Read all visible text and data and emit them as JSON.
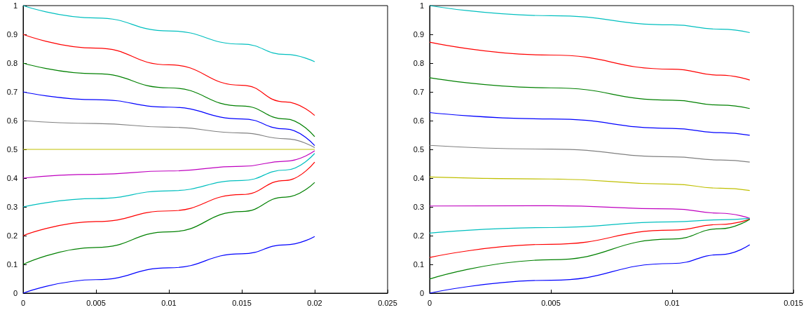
{
  "chart_data": [
    {
      "type": "line",
      "x": [
        0,
        0.005,
        0.01,
        0.015,
        0.018,
        0.02
      ],
      "xlim": [
        0,
        0.025
      ],
      "xticks": [
        0,
        0.005,
        0.01,
        0.015,
        0.02,
        0.025
      ],
      "ylim": [
        0,
        1
      ],
      "yticks": [
        0,
        0.1,
        0.2,
        0.3,
        0.4,
        0.5,
        0.6,
        0.7,
        0.8,
        0.9,
        1
      ],
      "grid": false,
      "series": [
        {
          "color": "#00bfbf",
          "values": [
            1.0,
            0.957,
            0.912,
            0.866,
            0.83,
            0.805
          ]
        },
        {
          "color": "#ff0000",
          "values": [
            0.9,
            0.852,
            0.794,
            0.723,
            0.665,
            0.618
          ]
        },
        {
          "color": "#008000",
          "values": [
            0.8,
            0.763,
            0.714,
            0.651,
            0.606,
            0.544
          ]
        },
        {
          "color": "#0000ff",
          "values": [
            0.7,
            0.673,
            0.647,
            0.606,
            0.571,
            0.513
          ]
        },
        {
          "color": "#808080",
          "values": [
            0.6,
            0.59,
            0.577,
            0.557,
            0.537,
            0.506
          ]
        },
        {
          "color": "#bfbf00",
          "values": [
            0.5,
            0.5,
            0.5,
            0.5,
            0.5,
            0.5
          ]
        },
        {
          "color": "#bf00bf",
          "values": [
            0.4,
            0.413,
            0.425,
            0.441,
            0.459,
            0.495
          ]
        },
        {
          "color": "#00bfbf",
          "values": [
            0.3,
            0.329,
            0.356,
            0.392,
            0.428,
            0.486
          ]
        },
        {
          "color": "#ff0000",
          "values": [
            0.2,
            0.249,
            0.286,
            0.343,
            0.392,
            0.456
          ]
        },
        {
          "color": "#008000",
          "values": [
            0.1,
            0.159,
            0.213,
            0.284,
            0.334,
            0.385
          ]
        },
        {
          "color": "#0000ff",
          "values": [
            0,
            0.047,
            0.088,
            0.137,
            0.168,
            0.197
          ]
        }
      ]
    },
    {
      "type": "line",
      "x": [
        0,
        0.005,
        0.01,
        0.012,
        0.0132
      ],
      "xlim": [
        0,
        0.015
      ],
      "xticks": [
        0,
        0.005,
        0.01,
        0.015
      ],
      "ylim": [
        0,
        1
      ],
      "yticks": [
        0,
        0.1,
        0.2,
        0.3,
        0.4,
        0.5,
        0.6,
        0.7,
        0.8,
        0.9,
        1
      ],
      "grid": false,
      "series": [
        {
          "color": "#00bfbf",
          "values": [
            1.0,
            0.965,
            0.933,
            0.918,
            0.906
          ]
        },
        {
          "color": "#ff0000",
          "values": [
            0.873,
            0.828,
            0.779,
            0.758,
            0.741
          ]
        },
        {
          "color": "#008000",
          "values": [
            0.749,
            0.714,
            0.671,
            0.654,
            0.642
          ]
        },
        {
          "color": "#0000ff",
          "values": [
            0.628,
            0.606,
            0.573,
            0.558,
            0.549
          ]
        },
        {
          "color": "#808080",
          "values": [
            0.514,
            0.501,
            0.474,
            0.463,
            0.456
          ]
        },
        {
          "color": "#bfbf00",
          "values": [
            0.404,
            0.397,
            0.379,
            0.365,
            0.357
          ]
        },
        {
          "color": "#bf00bf",
          "values": [
            0.303,
            0.304,
            0.293,
            0.278,
            0.26
          ]
        },
        {
          "color": "#00bfbf",
          "values": [
            0.209,
            0.228,
            0.248,
            0.255,
            0.26
          ]
        },
        {
          "color": "#ff0000",
          "values": [
            0.124,
            0.17,
            0.219,
            0.239,
            0.257
          ]
        },
        {
          "color": "#008000",
          "values": [
            0.049,
            0.116,
            0.188,
            0.224,
            0.257
          ]
        },
        {
          "color": "#0000ff",
          "values": [
            0,
            0.045,
            0.103,
            0.134,
            0.168
          ]
        }
      ]
    }
  ]
}
